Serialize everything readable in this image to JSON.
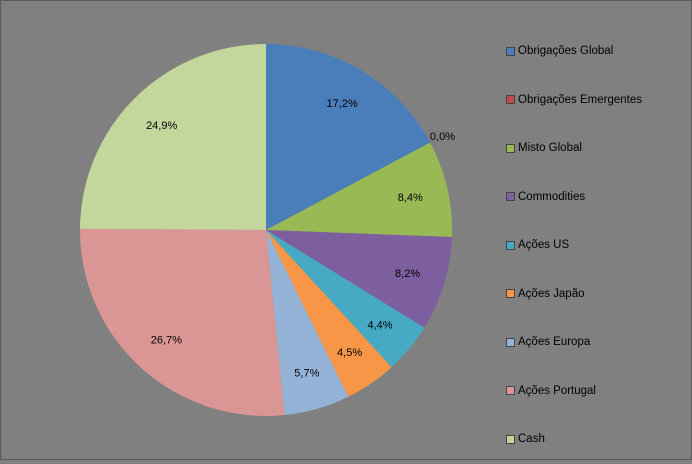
{
  "chart_data": {
    "type": "pie",
    "title": "",
    "legend_position": "right",
    "slices": [
      {
        "label": "Obrigações Global",
        "value": 17.2,
        "display": "17,2%",
        "color": "#4a7ebb"
      },
      {
        "label": "Obrigações Emergentes",
        "value": 0.0,
        "display": "0,0%",
        "color": "#be4b48"
      },
      {
        "label": "Misto Global",
        "value": 8.4,
        "display": "8,4%",
        "color": "#98b954"
      },
      {
        "label": "Commodities",
        "value": 8.2,
        "display": "8,2%",
        "color": "#7d5fa0"
      },
      {
        "label": "Ações US",
        "value": 4.4,
        "display": "4,4%",
        "color": "#46aac5"
      },
      {
        "label": "Ações Japão",
        "value": 4.5,
        "display": "4,5%",
        "color": "#f79646"
      },
      {
        "label": "Ações Europa",
        "value": 5.7,
        "display": "5,7%",
        "color": "#95b3d7"
      },
      {
        "label": "Ações Portugal",
        "value": 26.7,
        "display": "26,7%",
        "color": "#d99694"
      },
      {
        "label": "Cash",
        "value": 24.9,
        "display": "24,9%",
        "color": "#c3d69b"
      }
    ]
  }
}
